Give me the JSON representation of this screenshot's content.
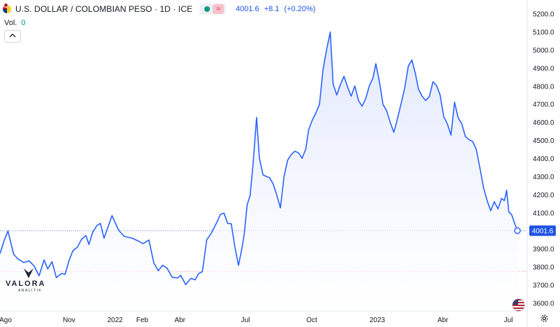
{
  "header": {
    "symbol": "U.S. DOLLAR / COLOMBIAN PESO · 1D · ICE",
    "approx_symbol": "≈",
    "last": "4001.6",
    "change": "+8.1",
    "change_pct": "(+0.20%)"
  },
  "volume": {
    "label": "Vol.",
    "value": "0"
  },
  "logo": {
    "name": "VALORA",
    "sub": "ANALITIK"
  },
  "colors": {
    "line": "#2962ff",
    "area_top": "#dfe6fd",
    "price_label_bg": "#1e53e5",
    "up": "#089981",
    "down": "#e0254d"
  },
  "chart_data": {
    "type": "area",
    "title": "U.S. DOLLAR / COLOMBIAN PESO · 1D · ICE",
    "x_ticks": [
      "Ago",
      "Nov",
      "2022",
      "Feb",
      "Abr",
      "Jul",
      "Oct",
      "2023",
      "Abr",
      "Jul"
    ],
    "y_ticks": [
      "5200.0",
      "5100.0",
      "5000.0",
      "4900.0",
      "4800.0",
      "4700.0",
      "4600.0",
      "4500.0",
      "4400.0",
      "4300.0",
      "4200.0",
      "4100.0",
      "3900.0",
      "3800.0",
      "3700.0",
      "3600.0"
    ],
    "ylim": [
      3570,
      5225
    ],
    "last_price_label": "4001.6",
    "last_price": 4001.6,
    "reference_level": 3777,
    "x_range": [
      "2021-08-01",
      "2023-07-18"
    ],
    "series": [
      {
        "points": [
          [
            "2021-08-01",
            3875
          ],
          [
            "2021-08-07",
            3950
          ],
          [
            "2021-08-12",
            4000
          ],
          [
            "2021-08-16",
            3935
          ],
          [
            "2021-08-20",
            3870
          ],
          [
            "2021-08-26",
            3845
          ],
          [
            "2021-09-03",
            3825
          ],
          [
            "2021-09-10",
            3835
          ],
          [
            "2021-09-17",
            3808
          ],
          [
            "2021-09-24",
            3752
          ],
          [
            "2021-10-01",
            3840
          ],
          [
            "2021-10-06",
            3790
          ],
          [
            "2021-10-12",
            3830
          ],
          [
            "2021-10-18",
            3742
          ],
          [
            "2021-10-25",
            3765
          ],
          [
            "2021-10-30",
            3760
          ],
          [
            "2021-11-05",
            3842
          ],
          [
            "2021-11-10",
            3892
          ],
          [
            "2021-11-16",
            3910
          ],
          [
            "2021-11-22",
            3955
          ],
          [
            "2021-11-28",
            3975
          ],
          [
            "2021-12-02",
            3925
          ],
          [
            "2021-12-07",
            3990
          ],
          [
            "2021-12-13",
            4030
          ],
          [
            "2021-12-18",
            4042
          ],
          [
            "2021-12-23",
            3960
          ],
          [
            "2022-01-03",
            4085
          ],
          [
            "2022-01-12",
            4005
          ],
          [
            "2022-01-20",
            3970
          ],
          [
            "2022-01-31",
            3960
          ],
          [
            "2022-02-08",
            3945
          ],
          [
            "2022-02-15",
            3930
          ],
          [
            "2022-02-23",
            3950
          ],
          [
            "2022-03-02",
            3822
          ],
          [
            "2022-03-08",
            3780
          ],
          [
            "2022-03-14",
            3810
          ],
          [
            "2022-03-20",
            3795
          ],
          [
            "2022-03-27",
            3745
          ],
          [
            "2022-04-04",
            3740
          ],
          [
            "2022-04-08",
            3755
          ],
          [
            "2022-04-15",
            3703
          ],
          [
            "2022-04-22",
            3738
          ],
          [
            "2022-04-28",
            3730
          ],
          [
            "2022-05-03",
            3765
          ],
          [
            "2022-05-08",
            3775
          ],
          [
            "2022-05-14",
            3950
          ],
          [
            "2022-05-20",
            3985
          ],
          [
            "2022-05-27",
            4040
          ],
          [
            "2022-06-02",
            4092
          ],
          [
            "2022-06-07",
            4098
          ],
          [
            "2022-06-12",
            4042
          ],
          [
            "2022-06-17",
            4040
          ],
          [
            "2022-06-22",
            3912
          ],
          [
            "2022-06-27",
            3810
          ],
          [
            "2022-07-02",
            3910
          ],
          [
            "2022-07-05",
            3985
          ],
          [
            "2022-07-09",
            4145
          ],
          [
            "2022-07-13",
            4195
          ],
          [
            "2022-07-17",
            4362
          ],
          [
            "2022-07-22",
            4628
          ],
          [
            "2022-07-26",
            4402
          ],
          [
            "2022-07-31",
            4310
          ],
          [
            "2022-08-04",
            4302
          ],
          [
            "2022-08-09",
            4295
          ],
          [
            "2022-08-14",
            4260
          ],
          [
            "2022-08-19",
            4198
          ],
          [
            "2022-08-24",
            4128
          ],
          [
            "2022-08-29",
            4302
          ],
          [
            "2022-09-03",
            4392
          ],
          [
            "2022-09-08",
            4422
          ],
          [
            "2022-09-13",
            4441
          ],
          [
            "2022-09-18",
            4432
          ],
          [
            "2022-09-23",
            4402
          ],
          [
            "2022-09-28",
            4452
          ],
          [
            "2022-10-02",
            4558
          ],
          [
            "2022-10-07",
            4612
          ],
          [
            "2022-10-12",
            4652
          ],
          [
            "2022-10-17",
            4700
          ],
          [
            "2022-10-22",
            4892
          ],
          [
            "2022-10-27",
            5005
          ],
          [
            "2022-11-01",
            5100
          ],
          [
            "2022-11-05",
            4812
          ],
          [
            "2022-11-10",
            4752
          ],
          [
            "2022-11-15",
            4810
          ],
          [
            "2022-11-20",
            4855
          ],
          [
            "2022-11-25",
            4795
          ],
          [
            "2022-11-30",
            4745
          ],
          [
            "2022-12-05",
            4802
          ],
          [
            "2022-12-10",
            4722
          ],
          [
            "2022-12-15",
            4690
          ],
          [
            "2022-12-20",
            4732
          ],
          [
            "2022-12-25",
            4802
          ],
          [
            "2022-12-30",
            4845
          ],
          [
            "2023-01-03",
            4925
          ],
          [
            "2023-01-08",
            4825
          ],
          [
            "2023-01-13",
            4700
          ],
          [
            "2023-01-18",
            4665
          ],
          [
            "2023-01-23",
            4600
          ],
          [
            "2023-01-28",
            4545
          ],
          [
            "2023-02-02",
            4622
          ],
          [
            "2023-02-07",
            4705
          ],
          [
            "2023-02-12",
            4790
          ],
          [
            "2023-02-17",
            4912
          ],
          [
            "2023-02-22",
            4945
          ],
          [
            "2023-02-27",
            4865
          ],
          [
            "2023-03-03",
            4785
          ],
          [
            "2023-03-08",
            4745
          ],
          [
            "2023-03-13",
            4722
          ],
          [
            "2023-03-18",
            4742
          ],
          [
            "2023-03-23",
            4825
          ],
          [
            "2023-03-28",
            4805
          ],
          [
            "2023-04-02",
            4752
          ],
          [
            "2023-04-07",
            4632
          ],
          [
            "2023-04-12",
            4592
          ],
          [
            "2023-04-17",
            4530
          ],
          [
            "2023-04-22",
            4712
          ],
          [
            "2023-04-27",
            4625
          ],
          [
            "2023-05-02",
            4592
          ],
          [
            "2023-05-07",
            4522
          ],
          [
            "2023-05-12",
            4505
          ],
          [
            "2023-05-17",
            4495
          ],
          [
            "2023-05-22",
            4452
          ],
          [
            "2023-05-27",
            4350
          ],
          [
            "2023-06-01",
            4240
          ],
          [
            "2023-06-06",
            4168
          ],
          [
            "2023-06-11",
            4112
          ],
          [
            "2023-06-16",
            4162
          ],
          [
            "2023-06-21",
            4122
          ],
          [
            "2023-06-26",
            4180
          ],
          [
            "2023-06-30",
            4168
          ],
          [
            "2023-07-03",
            4225
          ],
          [
            "2023-07-06",
            4105
          ],
          [
            "2023-07-10",
            4090
          ],
          [
            "2023-07-14",
            4042
          ],
          [
            "2023-07-18",
            4001.6
          ]
        ]
      }
    ]
  }
}
